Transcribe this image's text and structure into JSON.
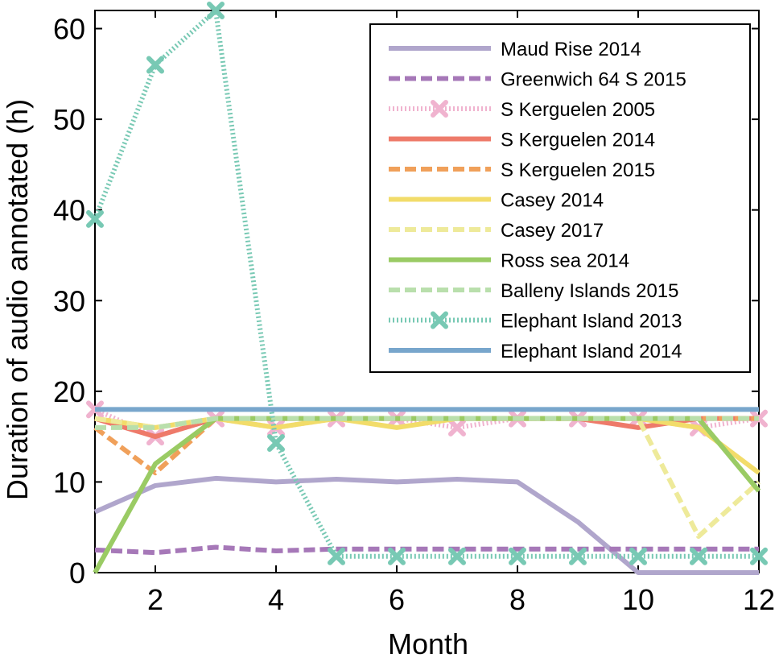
{
  "chart_data": {
    "type": "line",
    "title": "",
    "xlabel": "Month",
    "ylabel": "Duration of audio annotated (h)",
    "xlim": [
      1,
      12
    ],
    "ylim": [
      0,
      62
    ],
    "xticks": [
      2,
      4,
      6,
      8,
      10,
      12
    ],
    "yticks": [
      0,
      10,
      20,
      30,
      40,
      50,
      60
    ],
    "x": [
      1,
      2,
      3,
      4,
      5,
      6,
      7,
      8,
      9,
      10,
      11,
      12
    ],
    "legend_position": "top-right",
    "series": [
      {
        "name": "Maud Rise 2014",
        "color": "#b0a6cc",
        "style": "solid",
        "marker": "none",
        "values": [
          6.7,
          9.6,
          10.4,
          10.0,
          10.3,
          10.0,
          10.3,
          10.0,
          5.6,
          0.0,
          0.0,
          0.0
        ]
      },
      {
        "name": "Greenwich 64 S  2015",
        "color": "#a678b8",
        "style": "dashed",
        "marker": "none",
        "values": [
          2.5,
          2.2,
          2.8,
          2.4,
          2.6,
          2.6,
          2.6,
          2.6,
          2.6,
          2.6,
          2.6,
          2.6
        ]
      },
      {
        "name": "S Kerguelen 2005",
        "color": "#f0b3cf",
        "style": "dotted",
        "marker": "x",
        "values": [
          18.0,
          15.0,
          17.0,
          16.0,
          17.0,
          17.0,
          16.0,
          17.0,
          17.0,
          17.0,
          16.0,
          17.0
        ]
      },
      {
        "name": "S Kerguelen 2014",
        "color": "#ee7a6a",
        "style": "solid",
        "marker": "none",
        "values": [
          17.0,
          15.0,
          17.0,
          17.0,
          17.0,
          17.0,
          17.0,
          17.0,
          17.0,
          16.0,
          17.0,
          17.0
        ]
      },
      {
        "name": "S Kerguelen 2015",
        "color": "#f0a05a",
        "style": "dashed",
        "marker": "none",
        "values": [
          16.0,
          11.0,
          17.0,
          17.0,
          17.0,
          17.0,
          17.0,
          17.0,
          17.0,
          17.0,
          17.0,
          17.0
        ]
      },
      {
        "name": "Casey 2014",
        "color": "#f2dc6a",
        "style": "solid",
        "marker": "none",
        "values": [
          17.0,
          16.0,
          17.0,
          16.0,
          17.0,
          16.0,
          17.0,
          17.0,
          17.0,
          17.0,
          16.0,
          11.0
        ]
      },
      {
        "name": "Casey 2017",
        "color": "#eeea9a",
        "style": "dashed",
        "marker": "none",
        "values": [
          17.0,
          16.0,
          17.0,
          17.0,
          17.0,
          17.0,
          17.0,
          17.0,
          17.0,
          17.0,
          4.0,
          10.0
        ]
      },
      {
        "name": "Ross sea 2014",
        "color": "#9acb64",
        "style": "solid",
        "marker": "none",
        "values": [
          0.0,
          12.0,
          17.0,
          17.0,
          17.0,
          17.0,
          17.0,
          17.0,
          17.0,
          17.0,
          17.0,
          9.0
        ]
      },
      {
        "name": "Balleny Islands 2015",
        "color": "#b9dfac",
        "style": "dashed",
        "marker": "none",
        "values": [
          16.0,
          16.0,
          17.0,
          17.0,
          17.0,
          17.0,
          17.0,
          17.0,
          17.0,
          17.0,
          17.0,
          17.0
        ]
      },
      {
        "name": "Elephant Island 2013",
        "color": "#78c9b4",
        "style": "dotted",
        "marker": "x",
        "values": [
          39.0,
          56.0,
          62.0,
          14.3,
          1.8,
          1.8,
          1.8,
          1.8,
          1.8,
          1.8,
          1.8,
          1.8
        ]
      },
      {
        "name": "Elephant Island 2014",
        "color": "#78a6cc",
        "style": "solid",
        "marker": "none",
        "values": [
          18.0,
          18.0,
          18.0,
          18.0,
          18.0,
          18.0,
          18.0,
          18.0,
          18.0,
          18.0,
          18.0,
          18.0
        ]
      }
    ]
  }
}
